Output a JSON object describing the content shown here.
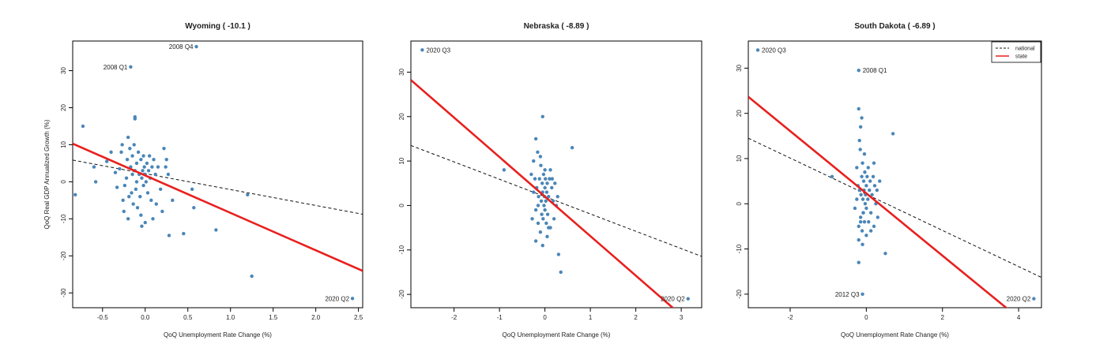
{
  "colors": {
    "points": "#4a86b8",
    "state_line": "#e8201e",
    "national_line": "#111111",
    "axes": "#000000"
  },
  "chart_data": [
    {
      "type": "scatter",
      "title": "Wyoming  ( -10.1 )",
      "xlabel": "QoQ Unemployment Rate Change (%)",
      "ylabel": "QoQ Real GDP Annualized Growth (%)",
      "xlim": [
        -0.85,
        2.55
      ],
      "ylim": [
        -34,
        38
      ],
      "xticks": [
        -0.5,
        0.0,
        0.5,
        1.0,
        1.5,
        2.0,
        2.5
      ],
      "xtick_labels": [
        "-0.5",
        "0.0",
        "0.5",
        "1.0",
        "1.5",
        "2.0",
        "2.5"
      ],
      "yticks": [
        -30,
        -20,
        -10,
        0,
        10,
        20,
        30
      ],
      "ytick_labels": [
        "-30",
        "-20",
        "-10",
        "0",
        "10",
        "20",
        "30"
      ],
      "state_line": {
        "slope": -10.1,
        "intercept": 1.7
      },
      "national_line": {
        "slope": -4.3,
        "intercept": 2.2
      },
      "annotations": [
        {
          "label": "2008 Q4",
          "x": 0.6,
          "y": 36.5,
          "side": "left"
        },
        {
          "label": "2008 Q1",
          "x": -0.17,
          "y": 31,
          "side": "left"
        },
        {
          "label": "2020 Q2",
          "x": 2.43,
          "y": -31.5,
          "side": "left"
        }
      ],
      "points": [
        [
          0.6,
          36.5
        ],
        [
          -0.17,
          31
        ],
        [
          2.43,
          -31.5
        ],
        [
          -0.73,
          15
        ],
        [
          -0.12,
          17.5
        ],
        [
          -0.12,
          17
        ],
        [
          1.25,
          -25.5
        ],
        [
          -0.82,
          -3.5
        ],
        [
          -0.58,
          0
        ],
        [
          -0.6,
          4
        ],
        [
          -0.45,
          5.5
        ],
        [
          -0.4,
          8
        ],
        [
          -0.35,
          2.5
        ],
        [
          -0.33,
          -1.5
        ],
        [
          -0.3,
          3.5
        ],
        [
          -0.28,
          8
        ],
        [
          -0.27,
          10
        ],
        [
          -0.26,
          -5
        ],
        [
          -0.25,
          -8
        ],
        [
          -0.24,
          -1
        ],
        [
          -0.22,
          1
        ],
        [
          -0.21,
          6
        ],
        [
          -0.2,
          12
        ],
        [
          -0.2,
          -10
        ],
        [
          -0.18,
          9
        ],
        [
          -0.17,
          4
        ],
        [
          -0.16,
          -3
        ],
        [
          -0.15,
          2
        ],
        [
          -0.15,
          7
        ],
        [
          -0.14,
          -6
        ],
        [
          -0.13,
          10
        ],
        [
          -0.12,
          3
        ],
        [
          -0.11,
          -2
        ],
        [
          -0.1,
          0
        ],
        [
          -0.1,
          5
        ],
        [
          -0.09,
          -7
        ],
        [
          -0.08,
          8
        ],
        [
          -0.07,
          2
        ],
        [
          -0.06,
          -4
        ],
        [
          -0.05,
          6
        ],
        [
          -0.04,
          1
        ],
        [
          -0.04,
          -12
        ],
        [
          -0.03,
          3
        ],
        [
          -0.02,
          -1
        ],
        [
          -0.02,
          7
        ],
        [
          -0.01,
          4
        ],
        [
          0.0,
          2
        ],
        [
          0.0,
          -11
        ],
        [
          0.01,
          0
        ],
        [
          0.02,
          5
        ],
        [
          0.03,
          -3
        ],
        [
          0.04,
          3
        ],
        [
          0.05,
          7
        ],
        [
          0.06,
          1
        ],
        [
          0.07,
          -5
        ],
        [
          0.08,
          4
        ],
        [
          0.09,
          -10
        ],
        [
          0.1,
          6
        ],
        [
          0.12,
          2
        ],
        [
          0.15,
          4
        ],
        [
          0.18,
          -2
        ],
        [
          0.22,
          9
        ],
        [
          0.24,
          4
        ],
        [
          0.25,
          6
        ],
        [
          0.27,
          2
        ],
        [
          0.28,
          -14.5
        ],
        [
          0.32,
          -5
        ],
        [
          0.45,
          -14
        ],
        [
          0.55,
          -2
        ],
        [
          0.57,
          -7
        ],
        [
          0.83,
          -13
        ],
        [
          1.2,
          -3.5
        ],
        [
          -0.05,
          -9
        ],
        [
          0.13,
          -6
        ],
        [
          -0.19,
          -4
        ],
        [
          0.2,
          -8
        ]
      ]
    },
    {
      "type": "scatter",
      "title": "Nebraska  ( -8.89 )",
      "xlabel": "QoQ Unemployment Rate Change (%)",
      "ylabel": "",
      "xlim": [
        -2.95,
        3.45
      ],
      "ylim": [
        -23,
        37
      ],
      "xticks": [
        -2,
        -1,
        0,
        1,
        2,
        3
      ],
      "xtick_labels": [
        "-2",
        "-1",
        "0",
        "1",
        "2",
        "3"
      ],
      "yticks": [
        -20,
        -10,
        0,
        10,
        20,
        30
      ],
      "ytick_labels": [
        "-20",
        "-10",
        "0",
        "10",
        "20",
        "30"
      ],
      "state_line": {
        "slope": -8.89,
        "intercept": 2.0
      },
      "national_line": {
        "slope": -3.9,
        "intercept": 2.0
      },
      "annotations": [
        {
          "label": "2020 Q3",
          "x": -2.7,
          "y": 35,
          "side": "right"
        },
        {
          "label": "2020 Q2",
          "x": 3.15,
          "y": -21,
          "side": "left"
        }
      ],
      "points": [
        [
          -2.7,
          35
        ],
        [
          3.15,
          -21
        ],
        [
          -0.05,
          20
        ],
        [
          0.6,
          13
        ],
        [
          -0.2,
          15
        ],
        [
          -0.9,
          8
        ],
        [
          -0.3,
          7
        ],
        [
          -0.25,
          10
        ],
        [
          -0.2,
          -1
        ],
        [
          -0.18,
          4
        ],
        [
          -0.16,
          12
        ],
        [
          -0.15,
          -4
        ],
        [
          -0.14,
          2
        ],
        [
          -0.12,
          6
        ],
        [
          -0.1,
          -6
        ],
        [
          -0.09,
          9
        ],
        [
          -0.08,
          1
        ],
        [
          -0.07,
          -2
        ],
        [
          -0.06,
          5
        ],
        [
          -0.05,
          3
        ],
        [
          -0.04,
          -3
        ],
        [
          -0.03,
          7
        ],
        [
          -0.02,
          0
        ],
        [
          -0.01,
          2
        ],
        [
          0.0,
          4
        ],
        [
          0.0,
          -1
        ],
        [
          0.01,
          6
        ],
        [
          0.02,
          1
        ],
        [
          0.03,
          -4
        ],
        [
          0.04,
          3
        ],
        [
          0.05,
          5
        ],
        [
          0.06,
          -2
        ],
        [
          0.08,
          2
        ],
        [
          0.1,
          6
        ],
        [
          0.12,
          -5
        ],
        [
          0.15,
          4
        ],
        [
          0.18,
          1
        ],
        [
          0.2,
          -3
        ],
        [
          0.22,
          5
        ],
        [
          0.25,
          0
        ],
        [
          -0.2,
          -8
        ],
        [
          -0.05,
          -9
        ],
        [
          0.3,
          -11
        ],
        [
          0.35,
          -15
        ],
        [
          -0.28,
          -3
        ],
        [
          -0.22,
          6
        ],
        [
          0.12,
          8
        ],
        [
          -0.1,
          11
        ],
        [
          0.05,
          -7
        ],
        [
          0.28,
          2
        ],
        [
          -0.15,
          0
        ],
        [
          0.0,
          8
        ],
        [
          0.08,
          -5
        ],
        [
          -0.25,
          3
        ],
        [
          0.16,
          6
        ]
      ]
    },
    {
      "type": "scatter",
      "title": "South Dakota  ( -6.89 )",
      "xlabel": "QoQ Unemployment Rate Change (%)",
      "ylabel": "",
      "xlim": [
        -3.1,
        4.6
      ],
      "ylim": [
        -23,
        36
      ],
      "xticks": [
        -2,
        0,
        2,
        4
      ],
      "xtick_labels": [
        "-2",
        "0",
        "2",
        "4"
      ],
      "yticks": [
        -20,
        -10,
        0,
        10,
        20,
        30
      ],
      "ytick_labels": [
        "-20",
        "-10",
        "0",
        "10",
        "20",
        "30"
      ],
      "state_line": {
        "slope": -6.89,
        "intercept": 2.3
      },
      "national_line": {
        "slope": -4.0,
        "intercept": 2.1
      },
      "legend": {
        "position": "top-right",
        "entries": [
          "national",
          "state"
        ]
      },
      "annotations": [
        {
          "label": "2020 Q3",
          "x": -2.85,
          "y": 34,
          "side": "right"
        },
        {
          "label": "2008 Q1",
          "x": -0.2,
          "y": 29.5,
          "side": "right"
        },
        {
          "label": "2012 Q3",
          "x": -0.1,
          "y": -20,
          "side": "left"
        },
        {
          "label": "2020 Q2",
          "x": 4.4,
          "y": -21,
          "side": "left"
        }
      ],
      "points": [
        [
          -2.85,
          34
        ],
        [
          -0.2,
          29.5
        ],
        [
          -0.1,
          -20
        ],
        [
          4.4,
          -21
        ],
        [
          -0.2,
          21
        ],
        [
          0.7,
          15.5
        ],
        [
          -0.9,
          6
        ],
        [
          0.5,
          -11
        ],
        [
          -0.2,
          -13
        ],
        [
          -0.25,
          8
        ],
        [
          -0.2,
          -5
        ],
        [
          -0.18,
          3
        ],
        [
          -0.16,
          12
        ],
        [
          -0.15,
          -3
        ],
        [
          -0.14,
          2
        ],
        [
          -0.12,
          6
        ],
        [
          -0.11,
          -6
        ],
        [
          -0.1,
          9
        ],
        [
          -0.09,
          1
        ],
        [
          -0.08,
          -2
        ],
        [
          -0.07,
          5
        ],
        [
          -0.06,
          3
        ],
        [
          -0.05,
          -4
        ],
        [
          -0.04,
          7
        ],
        [
          -0.03,
          0
        ],
        [
          -0.02,
          2
        ],
        [
          0.0,
          4
        ],
        [
          0.0,
          -1
        ],
        [
          0.02,
          6
        ],
        [
          0.04,
          1
        ],
        [
          0.06,
          -4
        ],
        [
          0.08,
          3
        ],
        [
          0.1,
          5
        ],
        [
          0.12,
          -2
        ],
        [
          0.15,
          2
        ],
        [
          0.18,
          6
        ],
        [
          0.2,
          -5
        ],
        [
          0.22,
          4
        ],
        [
          0.25,
          0
        ],
        [
          0.3,
          -3
        ],
        [
          0.35,
          5
        ],
        [
          -0.15,
          17
        ],
        [
          -0.18,
          14
        ],
        [
          -0.12,
          19
        ],
        [
          -0.05,
          11
        ],
        [
          -0.2,
          -8
        ],
        [
          0.0,
          -7
        ],
        [
          -0.1,
          -9
        ],
        [
          0.05,
          8
        ],
        [
          -0.22,
          4
        ],
        [
          -0.3,
          -1
        ],
        [
          -0.15,
          -4
        ],
        [
          0.12,
          -6
        ],
        [
          0.2,
          9
        ],
        [
          -0.08,
          -2
        ],
        [
          0.28,
          3
        ],
        [
          -0.25,
          1
        ]
      ]
    }
  ]
}
